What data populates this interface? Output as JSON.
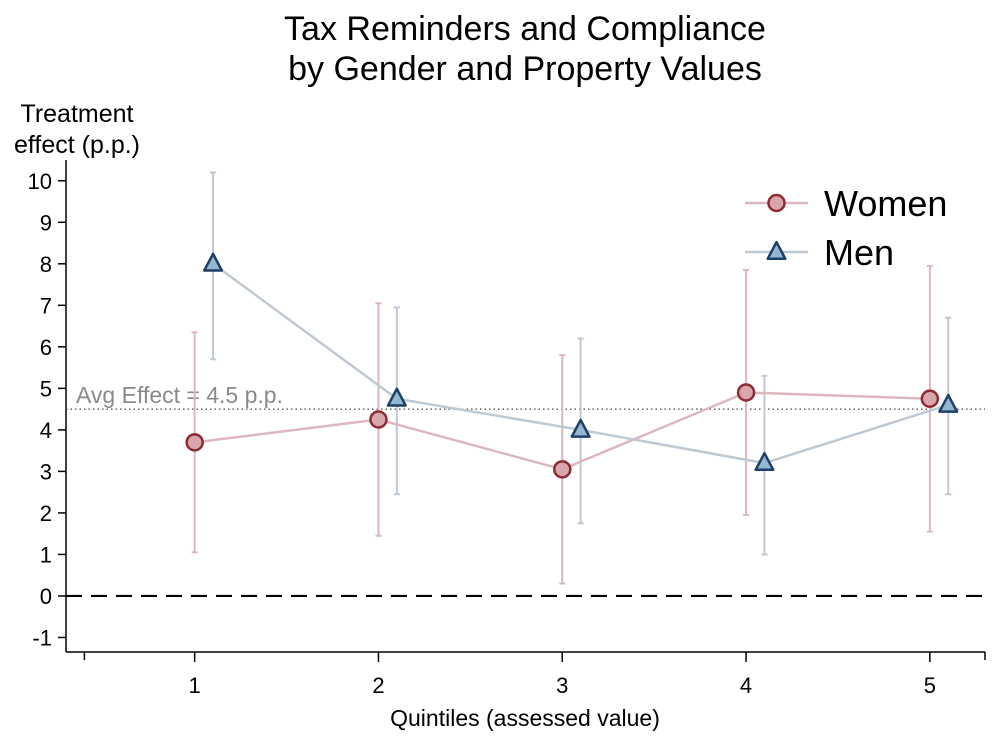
{
  "chart_data": {
    "type": "line",
    "title": [
      "Tax Reminders and Compliance",
      "by Gender and Property Values"
    ],
    "ylabel": [
      "Treatment",
      "effect (p.p.)"
    ],
    "xlabel": "Quintiles (assessed value)",
    "x": [
      1,
      2,
      3,
      4,
      5
    ],
    "xticks": [
      "1",
      "2",
      "3",
      "4",
      "5"
    ],
    "yticks": [
      -1,
      0,
      1,
      2,
      3,
      4,
      5,
      6,
      7,
      8,
      9,
      10
    ],
    "xlim": [
      0.3,
      5.3
    ],
    "ylim": [
      -1.35,
      10.5
    ],
    "series": [
      {
        "name": "Women",
        "marker": "circle",
        "x_offset": 0,
        "values": [
          3.7,
          4.25,
          3.05,
          4.9,
          4.75
        ],
        "ci_low": [
          1.05,
          1.45,
          0.3,
          1.95,
          1.55
        ],
        "ci_high": [
          6.35,
          7.05,
          5.8,
          7.85,
          7.95
        ],
        "line_color": "#dbb8bd",
        "marker_fill": "#d9a6ab",
        "marker_edge": "#8e2b33"
      },
      {
        "name": "Men",
        "marker": "triangle",
        "x_offset": 0.1,
        "values": [
          8.0,
          4.75,
          4.0,
          3.2,
          4.6
        ],
        "ci_low": [
          5.7,
          2.45,
          1.75,
          1.0,
          2.45
        ],
        "ci_high": [
          10.2,
          6.95,
          6.2,
          5.3,
          6.7
        ],
        "line_color": "#bfc9d3",
        "marker_fill": "#93b6d2",
        "marker_edge": "#1f3f66"
      }
    ],
    "reference_lines": [
      {
        "value": 4.5,
        "label": "Avg Effect = 4.5 p.p.",
        "style": "dotted"
      },
      {
        "value": 0,
        "label": "",
        "style": "dashed"
      }
    ],
    "legend_position": "top-right",
    "grid": false
  }
}
